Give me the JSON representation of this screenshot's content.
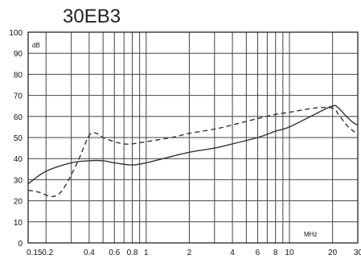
{
  "chart_data": {
    "type": "line",
    "title": "30EB3",
    "ylabel": "dB",
    "xlabel": "MHz",
    "x_scale": "log",
    "xlim": [
      0.15,
      30
    ],
    "ylim": [
      0,
      100
    ],
    "grid": true,
    "legend": "none",
    "y_ticks": [
      0,
      10,
      20,
      30,
      40,
      50,
      60,
      70,
      80,
      90,
      100
    ],
    "x_ticks": [
      {
        "value": 0.15,
        "label": "0.15"
      },
      {
        "value": 0.2,
        "label": "0.2"
      },
      {
        "value": 0.4,
        "label": "0.4"
      },
      {
        "value": 0.6,
        "label": "0.6"
      },
      {
        "value": 0.8,
        "label": "0.8"
      },
      {
        "value": 1,
        "label": "1"
      },
      {
        "value": 2,
        "label": "2"
      },
      {
        "value": 4,
        "label": "4"
      },
      {
        "value": 6,
        "label": "6"
      },
      {
        "value": 8,
        "label": "8"
      },
      {
        "value": 10,
        "label": "10"
      },
      {
        "value": 20,
        "label": "20"
      },
      {
        "value": 30,
        "label": "30"
      }
    ],
    "series": [
      {
        "style": "solid",
        "color": "#333333",
        "points": [
          [
            0.15,
            28
          ],
          [
            0.2,
            34
          ],
          [
            0.3,
            38
          ],
          [
            0.4,
            39
          ],
          [
            0.5,
            39
          ],
          [
            0.6,
            38
          ],
          [
            0.8,
            37
          ],
          [
            1,
            38
          ],
          [
            1.5,
            41
          ],
          [
            2,
            43
          ],
          [
            3,
            45
          ],
          [
            4,
            47
          ],
          [
            6,
            50
          ],
          [
            8,
            53
          ],
          [
            10,
            55
          ],
          [
            15,
            61
          ],
          [
            20,
            65
          ],
          [
            22,
            64
          ],
          [
            25,
            60
          ],
          [
            28,
            57
          ],
          [
            30,
            56
          ]
        ]
      },
      {
        "style": "dashed",
        "color": "#333333",
        "points": [
          [
            0.15,
            25
          ],
          [
            0.18,
            24
          ],
          [
            0.22,
            22
          ],
          [
            0.26,
            25
          ],
          [
            0.33,
            38
          ],
          [
            0.4,
            51
          ],
          [
            0.45,
            52
          ],
          [
            0.5,
            50
          ],
          [
            0.6,
            48
          ],
          [
            0.7,
            47
          ],
          [
            0.8,
            47
          ],
          [
            1,
            48
          ],
          [
            1.5,
            50
          ],
          [
            2,
            52
          ],
          [
            3,
            54
          ],
          [
            4,
            56
          ],
          [
            6,
            59
          ],
          [
            8,
            61
          ],
          [
            10,
            62
          ],
          [
            15,
            64
          ],
          [
            20,
            64
          ],
          [
            22,
            61
          ],
          [
            25,
            56
          ],
          [
            28,
            53
          ],
          [
            30,
            52
          ]
        ]
      }
    ]
  }
}
